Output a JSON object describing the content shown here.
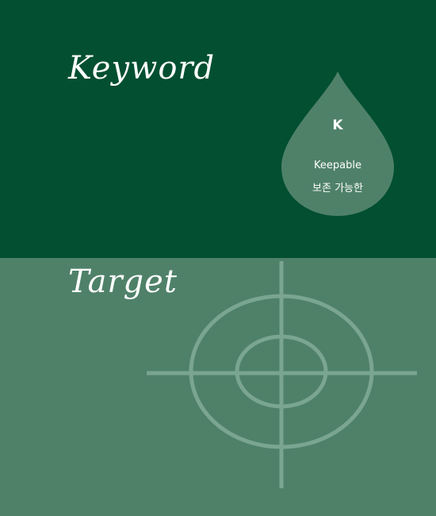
{
  "colors": {
    "top_bg": "#024f31",
    "bottom_bg": "#4f8169",
    "drop_fill": "#4f8169",
    "target_stroke": "#7aa591",
    "text": "#ffffff"
  },
  "keyword": {
    "heading": "Keyword",
    "letter": "K",
    "word": "Keepable",
    "korean": "보존 가능한"
  },
  "target": {
    "heading": "Target",
    "icon": "crosshair-icon"
  }
}
